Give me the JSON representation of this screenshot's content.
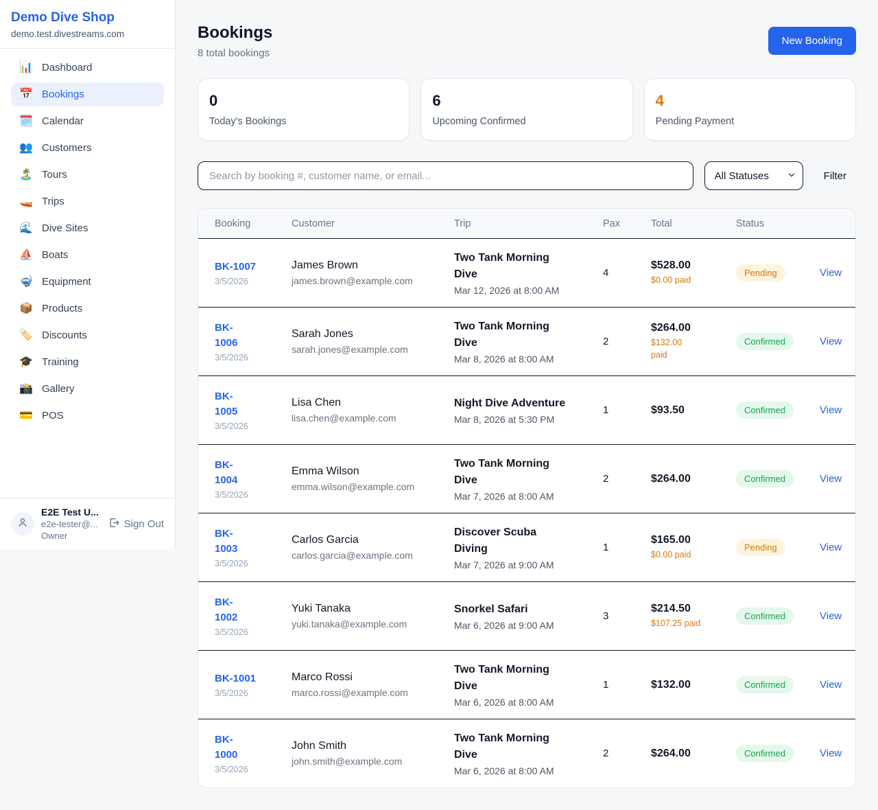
{
  "sidebar": {
    "title": "Demo Dive Shop",
    "domain": "demo.test.divestreams.com",
    "nav": [
      {
        "icon": "📊",
        "icon_name": "bar-chart-icon",
        "label": "Dashboard",
        "active": false
      },
      {
        "icon": "📅",
        "icon_name": "calendar-icon",
        "label": "Bookings",
        "active": true
      },
      {
        "icon": "🗓️",
        "icon_name": "spiral-calendar-icon",
        "label": "Calendar",
        "active": false
      },
      {
        "icon": "👥",
        "icon_name": "people-icon",
        "label": "Customers",
        "active": false
      },
      {
        "icon": "🏝️",
        "icon_name": "island-icon",
        "label": "Tours",
        "active": false
      },
      {
        "icon": "🚤",
        "icon_name": "speedboat-icon",
        "label": "Trips",
        "active": false
      },
      {
        "icon": "🌊",
        "icon_name": "wave-icon",
        "label": "Dive Sites",
        "active": false
      },
      {
        "icon": "⛵",
        "icon_name": "sailboat-icon",
        "label": "Boats",
        "active": false
      },
      {
        "icon": "🤿",
        "icon_name": "diving-mask-icon",
        "label": "Equipment",
        "active": false
      },
      {
        "icon": "📦",
        "icon_name": "package-icon",
        "label": "Products",
        "active": false
      },
      {
        "icon": "🏷️",
        "icon_name": "label-icon",
        "label": "Discounts",
        "active": false
      },
      {
        "icon": "🎓",
        "icon_name": "graduation-cap-icon",
        "label": "Training",
        "active": false
      },
      {
        "icon": "📸",
        "icon_name": "camera-icon",
        "label": "Gallery",
        "active": false
      },
      {
        "icon": "💳",
        "icon_name": "credit-card-icon",
        "label": "POS",
        "active": false
      }
    ],
    "user": {
      "name": "E2E Test U...",
      "email": "e2e-tester@...",
      "role": "Owner",
      "sign_out": "Sign Out"
    }
  },
  "header": {
    "title": "Bookings",
    "subtitle": "8 total bookings",
    "new_booking": "New Booking"
  },
  "stats": [
    {
      "value": "0",
      "label": "Today's Bookings",
      "color": "#0f172a"
    },
    {
      "value": "6",
      "label": "Upcoming Confirmed",
      "color": "#0f172a"
    },
    {
      "value": "4",
      "label": "Pending Payment",
      "color": "#d97706"
    }
  ],
  "filters": {
    "search_placeholder": "Search by booking #, customer name, or email...",
    "status_selected": "All Statuses",
    "filter_label": "Filter"
  },
  "status_styles": {
    "Pending": {
      "bg": "#fdf4dd",
      "fg": "#d97706"
    },
    "Confirmed": {
      "bg": "#e4f8ec",
      "fg": "#16a34a"
    }
  },
  "table": {
    "columns": [
      "Booking",
      "Customer",
      "Trip",
      "Pax",
      "Total",
      "Status",
      ""
    ],
    "action_label": "View",
    "rows": [
      {
        "id": "BK-1007",
        "id_wrap": false,
        "date": "3/5/2026",
        "customer": "James Brown",
        "email": "james.brown@example.com",
        "trip_lines": [
          "Two Tank Morning",
          "Dive"
        ],
        "trip_time": "Mar 12, 2026 at 8:00 AM",
        "pax": "4",
        "total": "$528.00",
        "paid": "$0.00 paid",
        "paid_wrap": false,
        "status": "Pending"
      },
      {
        "id": "BK-1006",
        "id_wrap": true,
        "date": "3/5/2026",
        "customer": "Sarah Jones",
        "email": "sarah.jones@example.com",
        "trip_lines": [
          "Two Tank Morning",
          "Dive"
        ],
        "trip_time": "Mar 8, 2026 at 8:00 AM",
        "pax": "2",
        "total": "$264.00",
        "paid": "$132.00 paid",
        "paid_wrap": true,
        "status": "Confirmed"
      },
      {
        "id": "BK-1005",
        "id_wrap": true,
        "date": "3/5/2026",
        "customer": "Lisa Chen",
        "email": "lisa.chen@example.com",
        "trip_lines": [
          "Night Dive Adventure"
        ],
        "trip_time": "Mar 8, 2026 at 5:30 PM",
        "pax": "1",
        "total": "$93.50",
        "paid": null,
        "paid_wrap": false,
        "status": "Confirmed"
      },
      {
        "id": "BK-1004",
        "id_wrap": true,
        "date": "3/5/2026",
        "customer": "Emma Wilson",
        "email": "emma.wilson@example.com",
        "trip_lines": [
          "Two Tank Morning",
          "Dive"
        ],
        "trip_time": "Mar 7, 2026 at 8:00 AM",
        "pax": "2",
        "total": "$264.00",
        "paid": null,
        "paid_wrap": false,
        "status": "Confirmed"
      },
      {
        "id": "BK-1003",
        "id_wrap": true,
        "date": "3/5/2026",
        "customer": "Carlos Garcia",
        "email": "carlos.garcia@example.com",
        "trip_lines": [
          "Discover Scuba",
          "Diving"
        ],
        "trip_time": "Mar 7, 2026 at 9:00 AM",
        "pax": "1",
        "total": "$165.00",
        "paid": "$0.00 paid",
        "paid_wrap": false,
        "status": "Pending"
      },
      {
        "id": "BK-1002",
        "id_wrap": true,
        "date": "3/5/2026",
        "customer": "Yuki Tanaka",
        "email": "yuki.tanaka@example.com",
        "trip_lines": [
          "Snorkel Safari"
        ],
        "trip_time": "Mar 6, 2026 at 9:00 AM",
        "pax": "3",
        "total": "$214.50",
        "paid": "$107.25 paid",
        "paid_wrap": false,
        "status": "Confirmed"
      },
      {
        "id": "BK-1001",
        "id_wrap": false,
        "date": "3/5/2026",
        "customer": "Marco Rossi",
        "email": "marco.rossi@example.com",
        "trip_lines": [
          "Two Tank Morning",
          "Dive"
        ],
        "trip_time": "Mar 6, 2026 at 8:00 AM",
        "pax": "1",
        "total": "$132.00",
        "paid": null,
        "paid_wrap": false,
        "status": "Confirmed"
      },
      {
        "id": "BK-1000",
        "id_wrap": true,
        "date": "3/5/2026",
        "customer": "John Smith",
        "email": "john.smith@example.com",
        "trip_lines": [
          "Two Tank Morning",
          "Dive"
        ],
        "trip_time": "Mar 6, 2026 at 8:00 AM",
        "pax": "2",
        "total": "$264.00",
        "paid": null,
        "paid_wrap": false,
        "status": "Confirmed"
      }
    ]
  }
}
